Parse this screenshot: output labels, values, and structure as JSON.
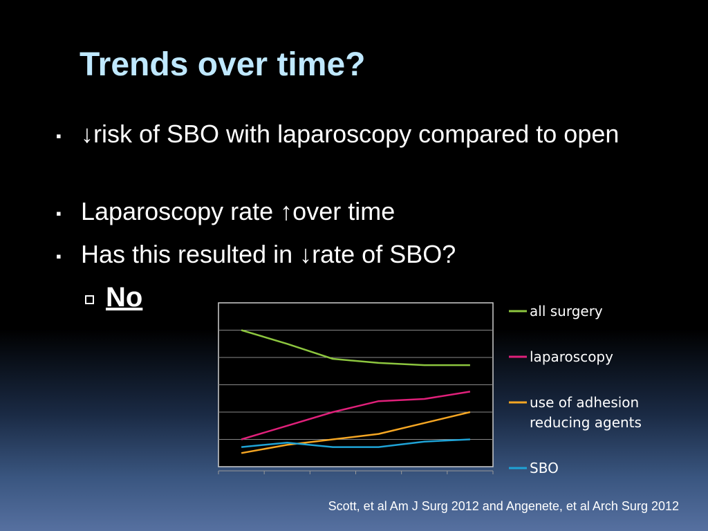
{
  "slide": {
    "title": "Trends over time?",
    "bullets": [
      {
        "text": "↓risk of SBO with laparoscopy compared to open"
      },
      {
        "text": "Laparoscopy rate ↑over time"
      },
      {
        "text": "Has this resulted in ↓rate of SBO?"
      }
    ],
    "sub_bullet": "No",
    "citation": "Scott, et al Am J Surg 2012 and Angenete, et al Arch Surg 2012"
  },
  "chart_data": {
    "type": "line",
    "title": "",
    "xlabel": "",
    "ylabel": "",
    "x": [
      1,
      2,
      3,
      4,
      5,
      6
    ],
    "grid": true,
    "legend_position": "right",
    "ylim": [
      0,
      6
    ],
    "series": [
      {
        "name": "all surgery",
        "color": "#8dc63f",
        "values": [
          5.0,
          4.5,
          3.95,
          3.8,
          3.72,
          3.72
        ]
      },
      {
        "name": "laparoscopy",
        "color": "#e0207a",
        "values": [
          1.0,
          1.5,
          2.0,
          2.4,
          2.48,
          2.75
        ]
      },
      {
        "name": "use of adhesion reducing agents",
        "color": "#f5a623",
        "values": [
          0.5,
          0.8,
          1.0,
          1.2,
          1.6,
          2.0
        ]
      },
      {
        "name": "SBO",
        "color": "#1fa3d6",
        "values": [
          0.72,
          0.88,
          0.72,
          0.72,
          0.92,
          1.0
        ]
      }
    ]
  }
}
